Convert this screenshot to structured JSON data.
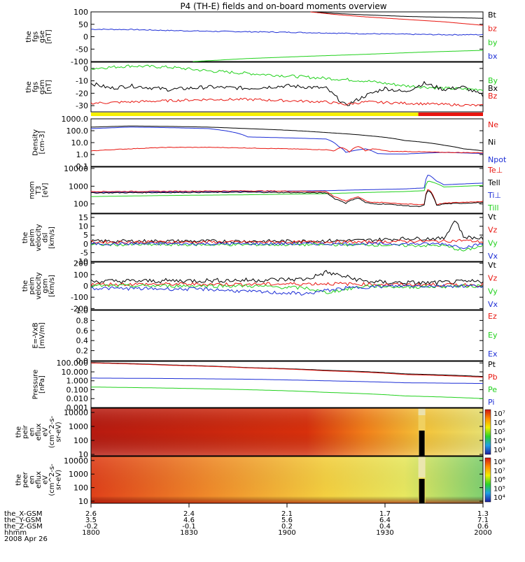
{
  "title": "P4 (TH-E) fields and on-board moments overview",
  "colors": {
    "black": "#000000",
    "red": "#e8150f",
    "green": "#21d11c",
    "blue": "#1d2ed6",
    "yellow": "#f6f000"
  },
  "chart_data": [
    {
      "type": "line",
      "ylabel": [
        "the",
        "fgs",
        "gse",
        "[nT]"
      ],
      "ticks": [
        "100",
        "50",
        "0",
        "-50",
        "-100"
      ],
      "ylim": [
        -100,
        100
      ],
      "legend": [
        {
          "t": "Bt",
          "c": "black"
        },
        {
          "t": "bz",
          "c": "red"
        },
        {
          "t": "by",
          "c": "green"
        },
        {
          "t": "bx",
          "c": "blue"
        }
      ],
      "series": [
        {
          "name": "Bt",
          "color": "black",
          "x": [
            0.56,
            0.62,
            0.7,
            0.8,
            0.9,
            1.0
          ],
          "y": [
            100,
            94,
            88,
            82,
            78,
            74
          ]
        },
        {
          "name": "bz",
          "color": "red",
          "x": [
            0.56,
            0.62,
            0.7,
            0.8,
            0.9,
            1.0
          ],
          "y": [
            100,
            90,
            80,
            70,
            60,
            46
          ]
        },
        {
          "name": "by",
          "color": "green",
          "x": [
            0.26,
            0.4,
            0.55,
            0.7,
            0.85,
            1.0
          ],
          "y": [
            -100,
            -88,
            -79,
            -71,
            -62,
            -55
          ]
        },
        {
          "name": "bx",
          "color": "blue",
          "x": [
            0,
            0.1,
            0.2,
            0.3,
            0.4,
            0.5,
            0.6,
            0.7,
            0.8,
            0.9,
            1.0
          ],
          "y": [
            30,
            29,
            25,
            22,
            20,
            18,
            15,
            12,
            10,
            8,
            8
          ],
          "noise": 2
        }
      ]
    },
    {
      "type": "line",
      "ylabel": [
        "the",
        "fgs",
        "gsm",
        "[nT]"
      ],
      "ticks": [
        "0",
        "-10",
        "-20",
        "-30"
      ],
      "ylim": [
        -35,
        5
      ],
      "legend": [
        {
          "t": "By",
          "c": "green"
        },
        {
          "t": "Bx",
          "c": "black"
        },
        {
          "t": "Bz",
          "c": "red"
        }
      ],
      "series": [
        {
          "name": "By",
          "color": "green",
          "x": [
            0,
            0.1,
            0.2,
            0.3,
            0.4,
            0.5,
            0.6,
            0.7,
            0.8,
            0.9,
            1.0
          ],
          "y": [
            0,
            2,
            1,
            -2,
            -4,
            -6,
            -8,
            -10,
            -14,
            -16,
            -17
          ],
          "noise": 1.2
        },
        {
          "name": "Bx",
          "color": "black",
          "x": [
            0,
            0.05,
            0.1,
            0.2,
            0.3,
            0.4,
            0.5,
            0.6,
            0.65,
            0.7,
            0.75,
            0.8,
            0.85,
            0.9,
            0.95,
            1.0
          ],
          "y": [
            -12,
            -16,
            -14,
            -17,
            -15,
            -16,
            -14,
            -16,
            -30,
            -22,
            -16,
            -19,
            -12,
            -17,
            -15,
            -22
          ],
          "noise": 1.5
        },
        {
          "name": "Bz",
          "color": "red",
          "x": [
            0,
            0.1,
            0.2,
            0.3,
            0.4,
            0.5,
            0.6,
            0.65,
            0.7,
            0.8,
            0.9,
            1.0
          ],
          "y": [
            -28,
            -27,
            -26,
            -25,
            -25,
            -26,
            -27,
            -29,
            -27,
            -28,
            -29,
            -30
          ],
          "noise": 1
        }
      ],
      "strip": [
        {
          "from": 0,
          "to": 0.835,
          "color": "yellow"
        },
        {
          "from": 0.835,
          "to": 1.0,
          "color": "red"
        }
      ]
    },
    {
      "type": "line",
      "log": true,
      "ylabel": [
        "Density",
        "[cm-3]"
      ],
      "ticks": [
        "1000.0",
        "100.0",
        "10.0",
        "1.0",
        "0.1"
      ],
      "ylim": [
        0.1,
        1000
      ],
      "legend": [
        {
          "t": "Ne",
          "c": "red"
        },
        {
          "t": "Ni",
          "c": "black"
        },
        {
          "t": "Npot",
          "c": "blue"
        }
      ],
      "series": [
        {
          "name": "Ni",
          "color": "black",
          "x": [
            0,
            0.1,
            0.2,
            0.3,
            0.4,
            0.5,
            0.6,
            0.7,
            0.8,
            0.9,
            0.95,
            1.0
          ],
          "y": [
            200,
            250,
            230,
            200,
            150,
            110,
            70,
            40,
            15,
            6,
            3,
            2
          ]
        },
        {
          "name": "Npot",
          "color": "blue",
          "x": [
            0,
            0.1,
            0.2,
            0.3,
            0.4,
            0.5,
            0.6,
            0.63,
            0.65,
            0.7,
            0.73,
            0.76,
            0.8,
            0.9,
            1.0
          ],
          "y": [
            150,
            200,
            180,
            150,
            30,
            25,
            20,
            5,
            1.5,
            3,
            1.2,
            1.1,
            1.1,
            1.5,
            1.2
          ]
        },
        {
          "name": "Ne",
          "color": "red",
          "x": [
            0,
            0.1,
            0.2,
            0.3,
            0.4,
            0.5,
            0.6,
            0.62,
            0.64,
            0.66,
            0.68,
            0.7,
            0.72,
            0.76,
            0.8,
            0.9,
            1.0
          ],
          "y": [
            2,
            3,
            4,
            4,
            3.5,
            3,
            2.5,
            2,
            4,
            1.5,
            5,
            2,
            3,
            1.8,
            1.8,
            1.5,
            1.4
          ],
          "noise": 0.05
        }
      ]
    },
    {
      "type": "line",
      "log": true,
      "ylabel": [
        "mom",
        "T3",
        "[eV]"
      ],
      "ticks": [
        "10000",
        "1000",
        "100"
      ],
      "ylim": [
        30,
        12000
      ],
      "legend": [
        {
          "t": "Te⊥",
          "c": "red"
        },
        {
          "t": "Tell",
          "c": "black"
        },
        {
          "t": "Ti⊥",
          "c": "blue"
        },
        {
          "t": "Till",
          "c": "green"
        }
      ],
      "series": [
        {
          "name": "Ti⊥",
          "color": "blue",
          "x": [
            0,
            0.2,
            0.4,
            0.6,
            0.8,
            0.85,
            0.86,
            0.88,
            0.9,
            1.0
          ],
          "y": [
            450,
            480,
            500,
            560,
            700,
            800,
            4500,
            2000,
            1200,
            1500
          ]
        },
        {
          "name": "Till",
          "color": "green",
          "x": [
            0,
            0.2,
            0.4,
            0.6,
            0.8,
            0.85,
            0.86,
            0.9,
            1.0
          ],
          "y": [
            260,
            300,
            330,
            380,
            500,
            560,
            2000,
            900,
            1100
          ]
        },
        {
          "name": "Te⊥",
          "color": "red",
          "x": [
            0,
            0.2,
            0.4,
            0.6,
            0.62,
            0.65,
            0.68,
            0.7,
            0.72,
            0.75,
            0.8,
            0.84,
            0.85,
            0.86,
            0.88,
            0.9,
            1.0
          ],
          "y": [
            500,
            520,
            550,
            500,
            250,
            140,
            260,
            150,
            120,
            120,
            100,
            90,
            100,
            700,
            90,
            110,
            140
          ],
          "noise": 0.05
        },
        {
          "name": "Tell",
          "color": "black",
          "x": [
            0,
            0.2,
            0.4,
            0.6,
            0.62,
            0.65,
            0.68,
            0.7,
            0.72,
            0.75,
            0.8,
            0.84,
            0.85,
            0.86,
            0.88,
            0.9,
            1.0
          ],
          "y": [
            420,
            440,
            460,
            420,
            200,
            110,
            220,
            120,
            100,
            100,
            80,
            70,
            85,
            600,
            80,
            100,
            120
          ],
          "noise": 0.05
        }
      ]
    },
    {
      "type": "line",
      "ylabel": [
        "the",
        "peim",
        "velocity",
        "dsl",
        "[km/s]"
      ],
      "ticks": [
        "15",
        "10",
        "5",
        "0",
        "-5",
        "-10"
      ],
      "ylim": [
        -10,
        17
      ],
      "legend": [
        {
          "t": "Vt",
          "c": "black"
        },
        {
          "t": "Vz",
          "c": "red"
        },
        {
          "t": "Vy",
          "c": "green"
        },
        {
          "t": "Vx",
          "c": "blue"
        }
      ],
      "series": [
        {
          "name": "Vt",
          "color": "black",
          "x": [
            0,
            0.5,
            0.7,
            0.8,
            0.9,
            0.93,
            0.95,
            1.0
          ],
          "y": [
            1.5,
            1.5,
            2,
            3,
            3,
            14,
            4,
            3
          ],
          "noise": 1
        },
        {
          "name": "Vz",
          "color": "red",
          "x": [
            0,
            0.5,
            0.7,
            0.8,
            0.9,
            0.95,
            1.0
          ],
          "y": [
            1,
            1,
            1,
            1.5,
            1.5,
            2,
            1
          ],
          "noise": 0.8
        },
        {
          "name": "Vy",
          "color": "green",
          "x": [
            0,
            0.5,
            0.7,
            0.8,
            0.9,
            0.95,
            1.0
          ],
          "y": [
            -0.5,
            -0.5,
            -0.5,
            -1,
            -1,
            -4,
            -1
          ],
          "noise": 0.8
        },
        {
          "name": "Vx",
          "color": "blue",
          "x": [
            0,
            0.5,
            0.7,
            0.8,
            0.9,
            0.95,
            1.0
          ],
          "y": [
            0,
            0,
            0,
            0,
            0,
            -2,
            0
          ],
          "noise": 0.8
        }
      ]
    },
    {
      "type": "line",
      "ylabel": [
        "the",
        "peim",
        "velocity",
        "gsm",
        "[km/s]"
      ],
      "ticks": [
        "200",
        "100",
        "0",
        "-100",
        "-200"
      ],
      "ylim": [
        -210,
        210
      ],
      "legend": [
        {
          "t": "Vt",
          "c": "black"
        },
        {
          "t": "Vz",
          "c": "red"
        },
        {
          "t": "Vy",
          "c": "green"
        },
        {
          "t": "Vx",
          "c": "blue"
        }
      ],
      "series": [
        {
          "name": "Vt",
          "color": "black",
          "x": [
            0,
            0.2,
            0.4,
            0.55,
            0.6,
            0.65,
            0.7,
            0.75,
            0.8,
            0.85,
            0.9,
            1.0
          ],
          "y": [
            40,
            45,
            50,
            60,
            120,
            80,
            40,
            30,
            30,
            25,
            30,
            40
          ],
          "noise": 20
        },
        {
          "name": "Vz",
          "color": "red",
          "x": [
            0,
            0.4,
            0.6,
            0.7,
            0.8,
            1.0
          ],
          "y": [
            15,
            15,
            20,
            15,
            10,
            10
          ],
          "noise": 15
        },
        {
          "name": "Vy",
          "color": "green",
          "x": [
            0,
            0.4,
            0.55,
            0.6,
            0.65,
            0.7,
            0.8,
            1.0
          ],
          "y": [
            0,
            0,
            -20,
            -60,
            -30,
            0,
            -10,
            0
          ],
          "noise": 15
        },
        {
          "name": "Vx",
          "color": "blue",
          "x": [
            0,
            0.3,
            0.4,
            0.55,
            0.6,
            0.65,
            0.7,
            0.8,
            1.0
          ],
          "y": [
            -20,
            -30,
            -50,
            -70,
            -40,
            -20,
            -10,
            0,
            0
          ],
          "noise": 15
        }
      ]
    },
    {
      "type": "line",
      "ylabel": [
        "E=-VxB",
        "[mV/m]"
      ],
      "ticks": [
        "1.0",
        "0.8",
        "0.6",
        "0.4",
        "0.2",
        "0.0"
      ],
      "ylim": [
        0,
        1
      ],
      "legend": [
        {
          "t": "Ez",
          "c": "red"
        },
        {
          "t": "Ey",
          "c": "green"
        },
        {
          "t": "Ex",
          "c": "blue"
        }
      ],
      "series": []
    },
    {
      "type": "line",
      "log": true,
      "ylabel": [
        "Pressure",
        "[nPa]"
      ],
      "ticks": [
        "100.000",
        "10.000",
        "1.000",
        "0.100",
        "0.010",
        "0.001"
      ],
      "ylim": [
        0.001,
        150
      ],
      "legend": [
        {
          "t": "Pt",
          "c": "black"
        },
        {
          "t": "Pb",
          "c": "red"
        },
        {
          "t": "Pe",
          "c": "green"
        },
        {
          "t": "Pi",
          "c": "blue"
        }
      ],
      "series": [
        {
          "name": "Pt",
          "color": "black",
          "x": [
            0,
            0.2,
            0.4,
            0.6,
            0.8,
            1.0
          ],
          "y": [
            110,
            60,
            30,
            15,
            6,
            3
          ]
        },
        {
          "name": "Pb",
          "color": "red",
          "x": [
            0,
            0.2,
            0.4,
            0.6,
            0.8,
            1.0
          ],
          "y": [
            100,
            55,
            28,
            13,
            5,
            2.5
          ]
        },
        {
          "name": "Pi",
          "color": "blue",
          "x": [
            0,
            0.2,
            0.4,
            0.6,
            0.8,
            1.0
          ],
          "y": [
            2,
            1.8,
            1.5,
            1.0,
            0.6,
            0.5
          ]
        },
        {
          "name": "Pe",
          "color": "green",
          "x": [
            0,
            0.2,
            0.4,
            0.6,
            0.8,
            1.0
          ],
          "y": [
            0.2,
            0.15,
            0.1,
            0.05,
            0.02,
            0.01
          ]
        }
      ]
    },
    {
      "type": "heatmap",
      "log": true,
      "ylabel": [
        "the",
        "peir",
        "en",
        "eflux",
        "eV",
        "(cm^2-s-",
        "sr-eV)"
      ],
      "ticks": [
        "10000",
        "1000",
        "100",
        "10"
      ],
      "ylim": [
        8,
        20000
      ],
      "colorbar": [
        "10⁷",
        "10⁶",
        "10⁵",
        "10⁴",
        "10³"
      ]
    },
    {
      "type": "heatmap",
      "log": true,
      "ylabel": [
        "the",
        "peer",
        "en",
        "eflux",
        "eV",
        "(cm^2-s-",
        "sr-eV)"
      ],
      "ticks": [
        "10000",
        "1000",
        "100",
        "10"
      ],
      "ylim": [
        7,
        20000
      ],
      "colorbar": [
        "10⁸",
        "10⁷",
        "10⁶",
        "10⁵",
        "10⁴"
      ]
    }
  ],
  "x_axis": {
    "row_labels": [
      "the_X-GSM",
      "the_Y-GSM",
      "the_Z-GSM",
      "hhmm",
      "2008 Apr 26"
    ],
    "columns": [
      [
        "2.6",
        "3.5",
        "-0.2",
        "1800"
      ],
      [
        "2.4",
        "4.6",
        "-0.1",
        "1830"
      ],
      [
        "2.1",
        "5.6",
        "0.2",
        "1900"
      ],
      [
        "1.7",
        "6.4",
        "0.4",
        "1930"
      ],
      [
        "1.3",
        "7.1",
        "0.6",
        "2000"
      ]
    ]
  }
}
